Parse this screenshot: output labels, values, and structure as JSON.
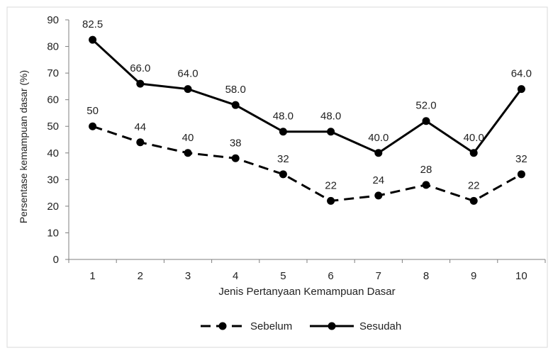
{
  "chart_data": {
    "type": "line",
    "title": "",
    "xlabel": "Jenis Pertanyaan Kemampuan Dasar",
    "ylabel": "Persentase kemampuan dasar (%)",
    "categories": [
      "1",
      "2",
      "3",
      "4",
      "5",
      "6",
      "7",
      "8",
      "9",
      "10"
    ],
    "ylim": [
      0,
      90
    ],
    "yticks": [
      0,
      10,
      20,
      30,
      40,
      50,
      60,
      70,
      80,
      90
    ],
    "grid": false,
    "legend_position": "bottom",
    "series": [
      {
        "name": "Sebelum",
        "style": "dashed",
        "color": "#000000",
        "values": [
          50,
          44,
          40,
          38,
          32,
          22,
          24,
          28,
          22,
          32
        ],
        "labels": [
          "50",
          "44",
          "40",
          "38",
          "32",
          "22",
          "24",
          "28",
          "22",
          "32"
        ]
      },
      {
        "name": "Sesudah",
        "style": "solid",
        "color": "#000000",
        "values": [
          82.5,
          66.0,
          64.0,
          58.0,
          48.0,
          48.0,
          40.0,
          52.0,
          40.0,
          64.0
        ],
        "labels": [
          "82.5",
          "66.0",
          "64.0",
          "58.0",
          "48.0",
          "48.0",
          "40.0",
          "52.0",
          "40.0",
          "64.0"
        ]
      }
    ]
  }
}
